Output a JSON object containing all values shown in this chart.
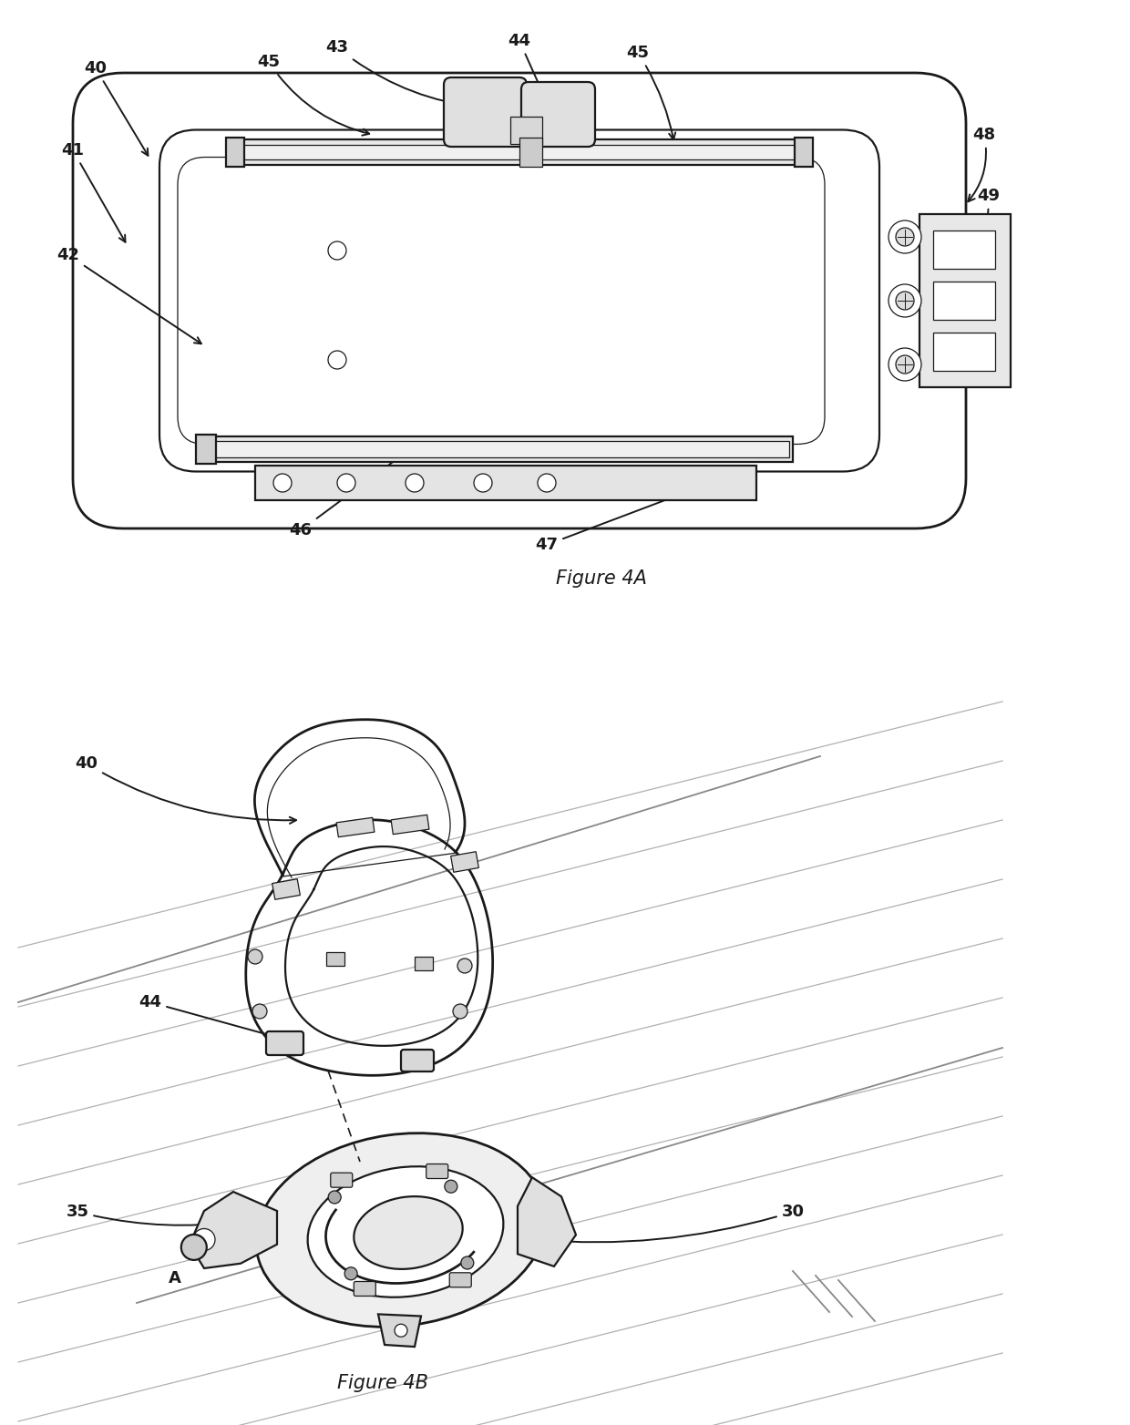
{
  "background_color": "#ffffff",
  "line_color": "#1a1a1a",
  "fig_width": 12.4,
  "fig_height": 15.64,
  "fig4a_caption": "Figure 4A",
  "fig4b_caption": "Figure 4B",
  "lw_main": 1.6,
  "lw_thin": 0.9,
  "lw_thick": 2.0,
  "label_fontsize": 13
}
